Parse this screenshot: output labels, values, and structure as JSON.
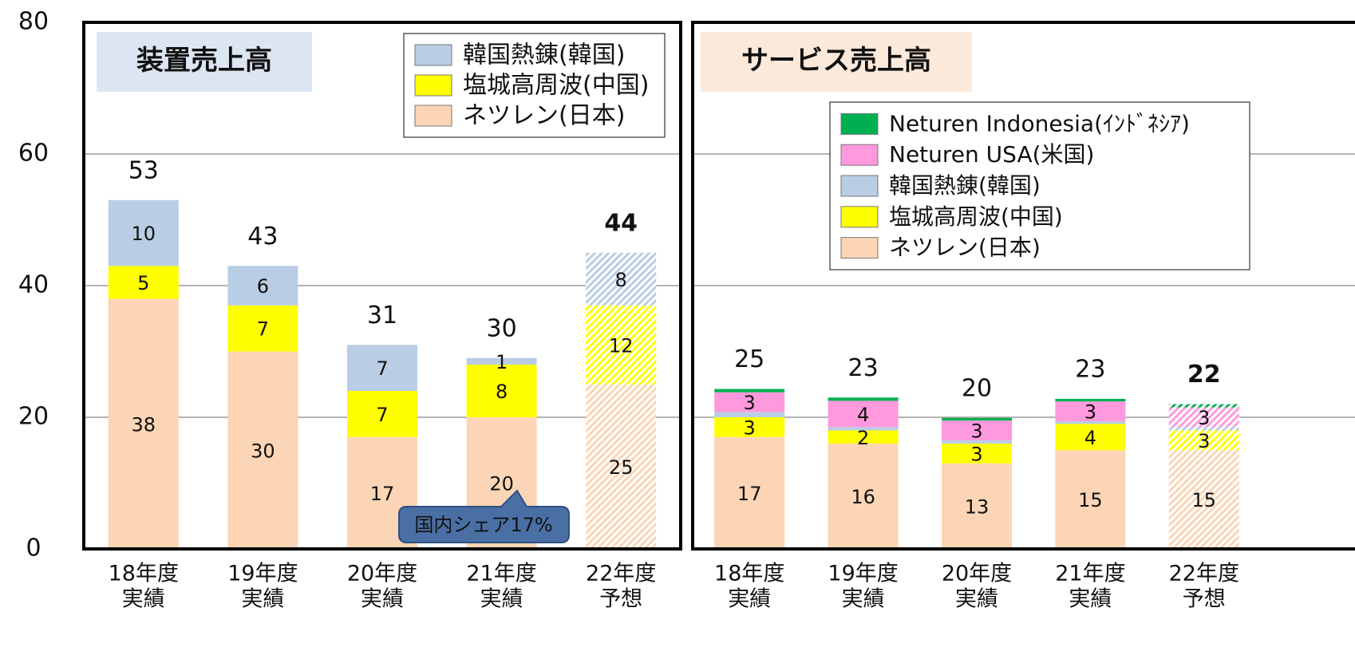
{
  "chart_data": [
    {
      "type": "stacked_bar",
      "title": "装置売上高",
      "title_bg": "#dce6f2",
      "categories": [
        [
          "18年度",
          "実績"
        ],
        [
          "19年度",
          "実績"
        ],
        [
          "20年度",
          "実績"
        ],
        [
          "21年度",
          "実績"
        ],
        [
          "22年度",
          "予想"
        ]
      ],
      "forecast": [
        false,
        false,
        false,
        false,
        true
      ],
      "series": [
        {
          "name": "ネツレン(日本)",
          "color": "#fbd5b5",
          "values": [
            38,
            30,
            17,
            20,
            25
          ],
          "show_labels": true
        },
        {
          "name": "塩城高周波(中国)",
          "color": "#ffff00",
          "values": [
            5,
            7,
            7,
            8,
            12
          ],
          "show_labels": true
        },
        {
          "name": "韓国熱錬(韓国)",
          "color": "#b9cde5",
          "values": [
            10,
            6,
            7,
            1,
            8
          ],
          "show_labels": true
        }
      ],
      "totals": [
        53,
        43,
        31,
        30,
        44
      ],
      "annotation": "国内シェア17%",
      "ylim": [
        0,
        80
      ],
      "yticks": [
        0,
        20,
        40,
        60,
        80
      ],
      "grid": true
    },
    {
      "type": "stacked_bar",
      "title": "サービス売上高",
      "title_bg": "#fde9d9",
      "categories": [
        [
          "18年度",
          "実績"
        ],
        [
          "19年度",
          "実績"
        ],
        [
          "20年度",
          "実績"
        ],
        [
          "21年度",
          "実績"
        ],
        [
          "22年度",
          "予想"
        ]
      ],
      "forecast": [
        false,
        false,
        false,
        false,
        true
      ],
      "series": [
        {
          "name": "ネツレン(日本)",
          "color": "#fbd5b5",
          "values": [
            17,
            16,
            13,
            15,
            15
          ],
          "show_labels": true
        },
        {
          "name": "塩城高周波(中国)",
          "color": "#ffff00",
          "values": [
            3,
            2,
            3,
            4,
            3
          ],
          "show_labels": true
        },
        {
          "name": "韓国熱錬(韓国)",
          "color": "#b9cde5",
          "values": [
            0.8,
            0.5,
            0.5,
            0.4,
            0.5
          ],
          "show_labels": false
        },
        {
          "name": "Neturen USA(米国)",
          "color": "#ff99dd",
          "values": [
            3,
            4,
            3,
            3,
            3
          ],
          "show_labels": true
        },
        {
          "name": "Neturen Indonesia(ｲﾝﾄﾞﾈｼｱ)",
          "color": "#00b050",
          "values": [
            0.5,
            0.5,
            0.4,
            0.4,
            0.5
          ],
          "show_labels": false
        }
      ],
      "totals": [
        25,
        23,
        20,
        23,
        22
      ],
      "ylim": [
        0,
        80
      ],
      "grid": true
    }
  ]
}
